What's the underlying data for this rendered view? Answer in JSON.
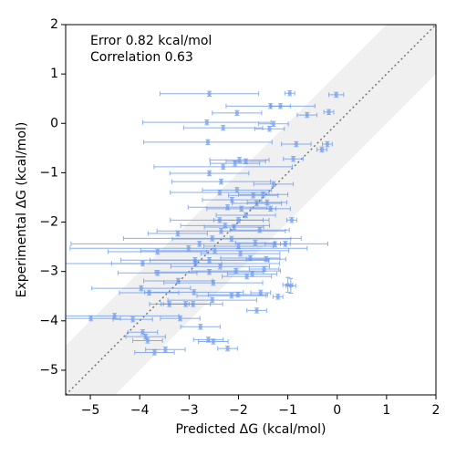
{
  "chart_data": {
    "type": "scatter",
    "annotations": [
      "Error 0.82 kcal/mol",
      "Correlation 0.63"
    ],
    "x_label": "Predicted ΔG (kcal/mol)",
    "y_label": "Experimental ΔG (kcal/mol)",
    "color": "#6495ed",
    "band_color": "#f0f0f0",
    "band_halfwidth": 1,
    "diagonal": true,
    "xlim": [
      -5.5,
      2
    ],
    "ylim": [
      -5.5,
      2
    ],
    "xticks": [
      {
        "value": -5,
        "label": "−5"
      },
      {
        "value": -4,
        "label": "−4"
      },
      {
        "value": -3,
        "label": "−3"
      },
      {
        "value": -2,
        "label": "−2"
      },
      {
        "value": -1,
        "label": "−1"
      },
      0,
      1,
      2
    ],
    "yticks": [
      {
        "value": -5,
        "label": "−5"
      },
      {
        "value": -4,
        "label": "−4"
      },
      {
        "value": -3,
        "label": "−3"
      },
      {
        "value": -2,
        "label": "−2"
      },
      {
        "value": -1,
        "label": "−1"
      },
      0,
      1,
      2
    ],
    "x": [
      -2.59,
      -0.96,
      -0.02,
      -0.17,
      -2.03,
      -1.35,
      -1.15,
      -2.64,
      -2.31,
      -0.61,
      -1.29,
      -1.37,
      -2.62,
      -0.83,
      -0.2,
      -0.31,
      -0.89,
      -1.98,
      -2.07,
      -1.85,
      -2.31,
      -2.59,
      -2.35,
      -1.29,
      -2.38,
      -2.03,
      -1.5,
      -1.7,
      -2.13,
      -1.42,
      -1.63,
      -2.22,
      -1.94,
      -1.35,
      -1.85,
      -2.38,
      -2.0,
      -0.92,
      -2.27,
      -2.09,
      -1.57,
      -2.35,
      -2.53,
      -3.23,
      -2.14,
      -1.66,
      -1.26,
      -1.05,
      -2.79,
      -2.0,
      -3.01,
      -3.64,
      -2.48,
      -1.96,
      -2.88,
      -3.94,
      -2.59,
      -1.76,
      -1.44,
      -2.87,
      -2.37,
      -1.48,
      -3.64,
      -2.59,
      -2.05,
      -1.83,
      -1.72,
      -3.22,
      -2.51,
      -1.0,
      -0.94,
      -3.97,
      -3.81,
      -2.9,
      -2.01,
      -2.14,
      -1.55,
      -1.2,
      -2.53,
      -3.07,
      -3.4,
      -2.92,
      -1.63,
      -4.99,
      -4.51,
      -3.18,
      -4.14,
      -2.77,
      -3.94,
      -3.88,
      -2.61,
      -3.84,
      -2.51,
      -3.48,
      -3.7,
      -2.22
    ],
    "y": [
      0.6,
      0.61,
      0.58,
      0.23,
      0.21,
      0.35,
      0.35,
      0.02,
      -0.09,
      0.17,
      -0.01,
      -0.11,
      -0.38,
      -0.42,
      -0.42,
      -0.53,
      -0.72,
      -0.74,
      -0.81,
      -0.77,
      -0.88,
      -1.01,
      -1.18,
      -1.23,
      -1.4,
      -1.35,
      -1.44,
      -1.46,
      -1.55,
      -1.6,
      -1.62,
      -1.7,
      -1.73,
      -1.73,
      -1.86,
      -1.96,
      -1.96,
      -1.96,
      -2.07,
      -2.1,
      -2.16,
      -2.18,
      -2.33,
      -2.23,
      -2.34,
      -2.42,
      -2.45,
      -2.44,
      -2.44,
      -2.49,
      -2.53,
      -2.6,
      -2.58,
      -2.64,
      -2.77,
      -2.84,
      -2.77,
      -2.73,
      -2.75,
      -2.84,
      -2.9,
      -2.95,
      -3.03,
      -3.01,
      -2.99,
      -3.1,
      -3.05,
      -3.19,
      -3.23,
      -3.27,
      -3.29,
      -3.34,
      -3.43,
      -3.42,
      -3.47,
      -3.49,
      -3.43,
      -3.51,
      -3.58,
      -3.66,
      -3.66,
      -3.66,
      -3.79,
      -3.95,
      -3.9,
      -3.95,
      -3.97,
      -4.12,
      -4.23,
      -4.32,
      -4.38,
      -4.4,
      -4.42,
      -4.58,
      -4.64,
      -4.56
    ],
    "xerr": [
      1.0,
      0.1,
      0.15,
      0.1,
      0.5,
      0.9,
      0.2,
      1.3,
      0.8,
      0.2,
      0.3,
      0.3,
      1.3,
      0.3,
      0.1,
      0.1,
      0.2,
      0.6,
      0.5,
      0.4,
      1.4,
      0.8,
      1.0,
      0.4,
      1.0,
      0.7,
      0.5,
      0.5,
      0.6,
      0.4,
      0.5,
      0.8,
      0.7,
      0.4,
      0.6,
      1.0,
      0.5,
      0.1,
      0.9,
      0.6,
      0.6,
      1.3,
      1.8,
      0.6,
      1.2,
      0.4,
      0.2,
      0.1,
      2.6,
      0.7,
      2.4,
      1.0,
      1.5,
      0.8,
      1.5,
      1.6,
      1.2,
      0.6,
      0.4,
      1.7,
      1.0,
      0.3,
      0.8,
      1.1,
      0.9,
      0.5,
      0.5,
      0.7,
      1.0,
      0.1,
      0.1,
      1.0,
      0.6,
      1.0,
      0.6,
      0.7,
      0.2,
      0.1,
      0.9,
      0.5,
      0.4,
      0.6,
      0.2,
      0.6,
      1.3,
      0.4,
      0.4,
      0.4,
      0.3,
      0.4,
      0.3,
      0.3,
      0.3,
      0.4,
      0.4,
      0.2
    ],
    "yerr": [
      0.05,
      0.05,
      0.05,
      0.05,
      0.05,
      0.05,
      0.05,
      0.05,
      0.05,
      0.05,
      0.05,
      0.05,
      0.05,
      0.05,
      0.05,
      0.05,
      0.05,
      0.05,
      0.05,
      0.05,
      0.05,
      0.05,
      0.05,
      0.05,
      0.05,
      0.05,
      0.05,
      0.05,
      0.05,
      0.05,
      0.05,
      0.05,
      0.05,
      0.05,
      0.05,
      0.05,
      0.05,
      0.05,
      0.05,
      0.05,
      0.05,
      0.05,
      0.05,
      0.05,
      0.05,
      0.05,
      0.05,
      0.05,
      0.05,
      0.05,
      0.05,
      0.05,
      0.05,
      0.05,
      0.05,
      0.05,
      0.05,
      0.05,
      0.05,
      0.05,
      0.05,
      0.05,
      0.05,
      0.05,
      0.05,
      0.05,
      0.05,
      0.05,
      0.05,
      0.15,
      0.15,
      0.05,
      0.05,
      0.05,
      0.05,
      0.05,
      0.05,
      0.05,
      0.05,
      0.05,
      0.05,
      0.05,
      0.05,
      0.05,
      0.05,
      0.05,
      0.05,
      0.05,
      0.05,
      0.05,
      0.05,
      0.05,
      0.05,
      0.05,
      0.05,
      0.05
    ]
  }
}
